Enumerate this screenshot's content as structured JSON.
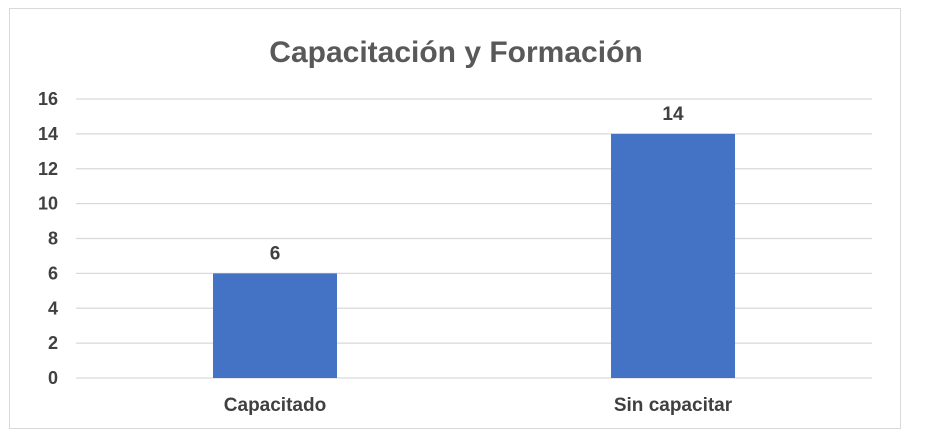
{
  "chart_data": {
    "type": "bar",
    "title": "Capacitación y Formación",
    "categories": [
      "Capacitado",
      "Sin capacitar"
    ],
    "values": [
      6,
      14
    ],
    "xlabel": "",
    "ylabel": "",
    "ylim": [
      0,
      16
    ],
    "yticks": [
      0,
      2,
      4,
      6,
      8,
      10,
      12,
      14,
      16
    ],
    "grid": true,
    "legend": "none",
    "bar_color": "#4472c4",
    "grid_color": "#d9d9d9",
    "text_color": "#404040",
    "title_color": "#595959"
  }
}
